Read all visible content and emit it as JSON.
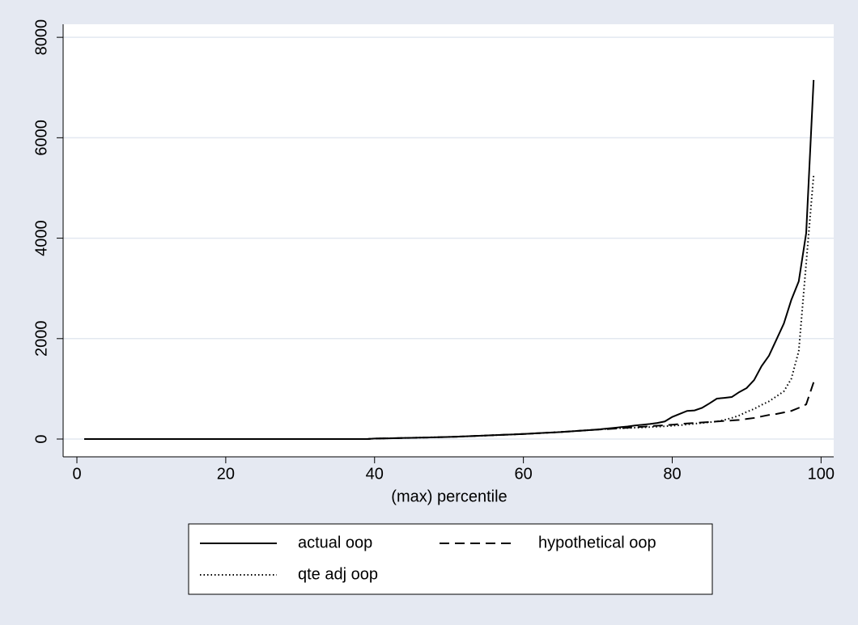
{
  "chart_data": {
    "type": "line",
    "x_label": "(max) percentile",
    "x": [
      1,
      2,
      3,
      4,
      5,
      6,
      7,
      8,
      9,
      10,
      11,
      12,
      13,
      14,
      15,
      16,
      17,
      18,
      19,
      20,
      21,
      22,
      23,
      24,
      25,
      26,
      27,
      28,
      29,
      30,
      31,
      32,
      33,
      34,
      35,
      36,
      37,
      38,
      39,
      40,
      41,
      42,
      43,
      44,
      45,
      46,
      47,
      48,
      49,
      50,
      51,
      52,
      53,
      54,
      55,
      56,
      57,
      58,
      59,
      60,
      61,
      62,
      63,
      64,
      65,
      66,
      67,
      68,
      69,
      70,
      71,
      72,
      73,
      74,
      75,
      76,
      77,
      78,
      79,
      80,
      81,
      82,
      83,
      84,
      85,
      86,
      87,
      88,
      89,
      90,
      91,
      92,
      93,
      94,
      95,
      96,
      97,
      98,
      99
    ],
    "series": [
      {
        "name": "actual oop",
        "color": "#000000",
        "dash": "solid",
        "values": [
          0,
          0,
          0,
          0,
          0,
          0,
          0,
          0,
          0,
          0,
          0,
          0,
          0,
          0,
          0,
          0,
          0,
          0,
          0,
          0,
          0,
          0,
          0,
          0,
          0,
          0,
          0,
          0,
          0,
          0,
          0,
          0,
          0,
          0,
          0,
          0,
          0,
          0,
          0,
          10,
          12,
          15,
          18,
          22,
          25,
          28,
          31,
          35,
          38,
          42,
          47,
          52,
          58,
          64,
          70,
          76,
          82,
          88,
          94,
          100,
          108,
          116,
          124,
          132,
          140,
          150,
          160,
          170,
          180,
          190,
          205,
          220,
          235,
          250,
          270,
          285,
          300,
          320,
          350,
          440,
          500,
          560,
          570,
          620,
          710,
          805,
          820,
          837,
          935,
          1015,
          1175,
          1450,
          1660,
          1980,
          2300,
          2770,
          3140,
          4100,
          7150
        ]
      },
      {
        "name": "hypothetical oop",
        "color": "#000000",
        "dash": "dashed",
        "values": [
          0,
          0,
          0,
          0,
          0,
          0,
          0,
          0,
          0,
          0,
          0,
          0,
          0,
          0,
          0,
          0,
          0,
          0,
          0,
          0,
          0,
          0,
          0,
          0,
          0,
          0,
          0,
          0,
          0,
          0,
          0,
          0,
          0,
          0,
          0,
          0,
          0,
          0,
          0,
          10,
          12,
          15,
          18,
          22,
          25,
          28,
          31,
          35,
          38,
          42,
          47,
          52,
          58,
          64,
          70,
          76,
          82,
          88,
          94,
          100,
          108,
          116,
          124,
          132,
          140,
          150,
          160,
          170,
          180,
          190,
          195,
          205,
          215,
          225,
          235,
          245,
          255,
          265,
          275,
          285,
          300,
          310,
          320,
          330,
          340,
          350,
          360,
          370,
          380,
          400,
          420,
          450,
          480,
          500,
          530,
          560,
          620,
          690,
          1130
        ]
      },
      {
        "name": "qte adj oop",
        "color": "#000000",
        "dash": "dotted",
        "values": [
          0,
          0,
          0,
          0,
          0,
          0,
          0,
          0,
          0,
          0,
          0,
          0,
          0,
          0,
          0,
          0,
          0,
          0,
          0,
          0,
          0,
          0,
          0,
          0,
          0,
          0,
          0,
          0,
          0,
          0,
          0,
          0,
          0,
          0,
          0,
          0,
          0,
          0,
          0,
          10,
          12,
          15,
          18,
          22,
          25,
          28,
          31,
          35,
          38,
          42,
          47,
          52,
          58,
          64,
          70,
          76,
          82,
          88,
          94,
          100,
          108,
          116,
          124,
          132,
          140,
          150,
          160,
          170,
          180,
          190,
          200,
          210,
          215,
          220,
          225,
          230,
          240,
          245,
          255,
          265,
          275,
          290,
          305,
          320,
          335,
          350,
          380,
          420,
          470,
          540,
          600,
          680,
          750,
          850,
          950,
          1200,
          1750,
          3500,
          5250
        ]
      }
    ],
    "xlim": [
      -1.85,
      101.7
    ],
    "xticks": [
      0,
      20,
      40,
      60,
      80,
      100
    ],
    "ylim": [
      -354,
      8260
    ],
    "yticks": [
      0,
      2000,
      4000,
      6000,
      8000
    ],
    "grid": true
  }
}
